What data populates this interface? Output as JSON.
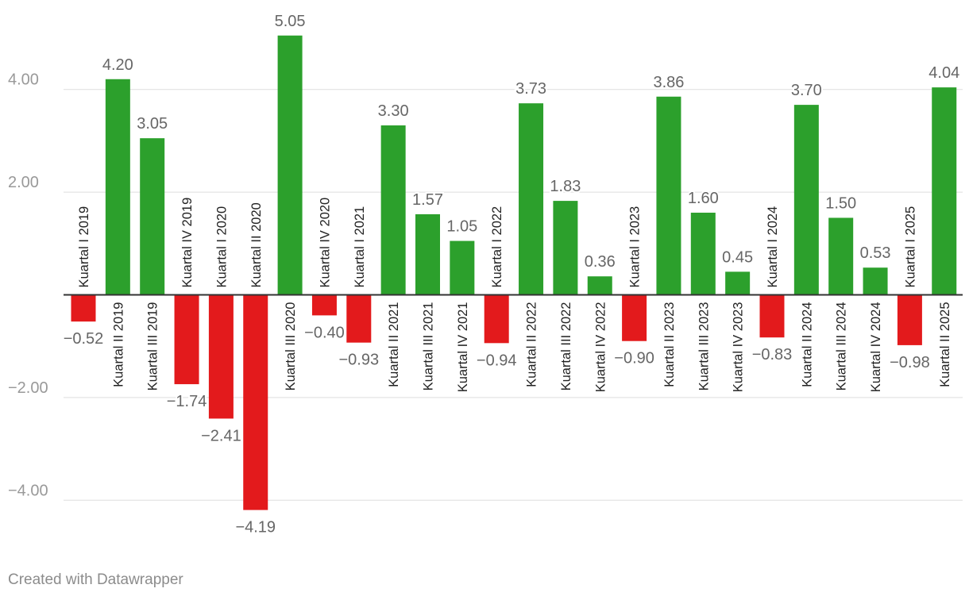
{
  "footer": {
    "credit": "Created with Datawrapper"
  },
  "colors": {
    "positive": "#2ca02c",
    "negative": "#e31a1c",
    "grid": "#dddddd",
    "axis": "#333333",
    "tick_text": "#999999",
    "label_text": "#666666",
    "category_text": "#222222"
  },
  "chart_data": {
    "type": "bar",
    "title": "",
    "xlabel": "",
    "ylabel": "",
    "ylim": [
      -4.19,
      5.05
    ],
    "yticks": [
      {
        "value": 4,
        "label": "4.00"
      },
      {
        "value": 2,
        "label": "2.00"
      },
      {
        "value": -2,
        "label": "−2.00"
      },
      {
        "value": -4,
        "label": "−4.00"
      }
    ],
    "grid": true,
    "categories": [
      "Kuartal I 2019",
      "Kuartal II 2019",
      "Kuartal III 2019",
      "Kuartal IV 2019",
      "Kuartal I 2020",
      "Kuartal II 2020",
      "Kuartal III 2020",
      "Kuartal IV 2020",
      "Kuartal I 2021",
      "Kuartal II 2021",
      "Kuartal III 2021",
      "Kuartal IV 2021",
      "Kuartal I 2022",
      "Kuartal II 2022",
      "Kuartal III 2022",
      "Kuartal IV 2022",
      "Kuartal I 2023",
      "Kuartal II 2023",
      "Kuartal III 2023",
      "Kuartal IV 2023",
      "Kuartal I 2024",
      "Kuartal II 2024",
      "Kuartal III 2024",
      "Kuartal IV 2024",
      "Kuartal I 2025",
      "Kuartal II 2025"
    ],
    "values": [
      -0.52,
      4.2,
      3.05,
      -1.74,
      -2.41,
      -4.19,
      5.05,
      -0.4,
      -0.93,
      3.3,
      1.57,
      1.05,
      -0.94,
      3.73,
      1.83,
      0.36,
      -0.9,
      3.86,
      1.6,
      0.45,
      -0.83,
      3.7,
      1.5,
      0.53,
      -0.98,
      4.04
    ],
    "value_labels": [
      "−0.52",
      "4.20",
      "3.05",
      "−1.74",
      "−2.41",
      "−4.19",
      "5.05",
      "−0.40",
      "−0.93",
      "3.30",
      "1.57",
      "1.05",
      "−0.94",
      "3.73",
      "1.83",
      "0.36",
      "−0.90",
      "3.86",
      "1.60",
      "0.45",
      "−0.83",
      "3.70",
      "1.50",
      "0.53",
      "−0.98",
      "4.04"
    ]
  }
}
